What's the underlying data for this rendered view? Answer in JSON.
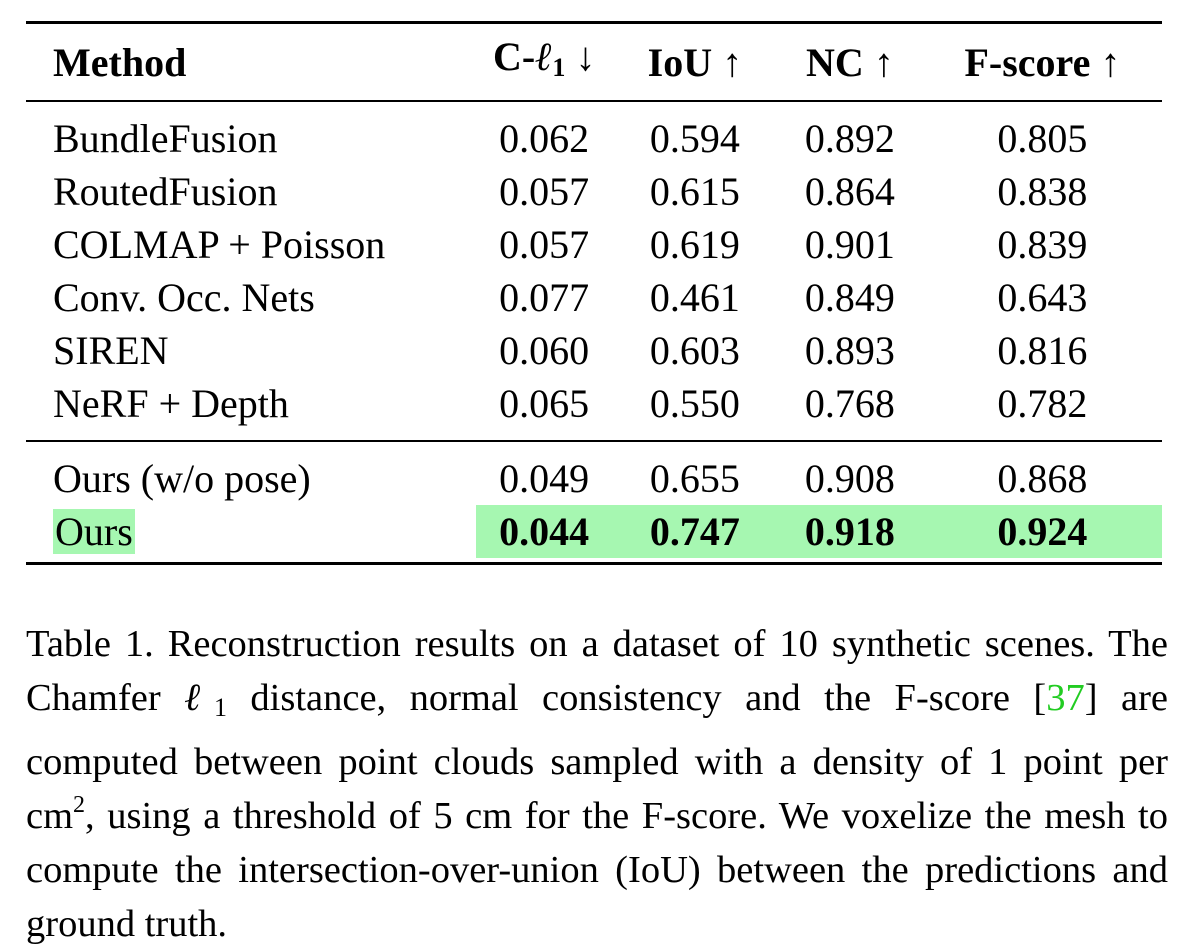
{
  "table": {
    "headers": {
      "method": "Method",
      "chamfer_prefix": "C-",
      "chamfer_symbol": "ℓ",
      "chamfer_sub": "1",
      "chamfer_arrow": "↓",
      "iou": "IoU ↑",
      "nc": "NC ↑",
      "fscore": "F-score ↑"
    },
    "rows": [
      {
        "method": "BundleFusion",
        "c_l1": "0.062",
        "iou": "0.594",
        "nc": "0.892",
        "fscore": "0.805"
      },
      {
        "method": "RoutedFusion",
        "c_l1": "0.057",
        "iou": "0.615",
        "nc": "0.864",
        "fscore": "0.838"
      },
      {
        "method": "COLMAP + Poisson",
        "c_l1": "0.057",
        "iou": "0.619",
        "nc": "0.901",
        "fscore": "0.839"
      },
      {
        "method": "Conv. Occ. Nets",
        "c_l1": "0.077",
        "iou": "0.461",
        "nc": "0.849",
        "fscore": "0.643"
      },
      {
        "method": "SIREN",
        "c_l1": "0.060",
        "iou": "0.603",
        "nc": "0.893",
        "fscore": "0.816"
      },
      {
        "method": "NeRF + Depth",
        "c_l1": "0.065",
        "iou": "0.550",
        "nc": "0.768",
        "fscore": "0.782"
      }
    ],
    "ours_rows": [
      {
        "method": "Ours (w/o pose)",
        "c_l1": "0.049",
        "iou": "0.655",
        "nc": "0.908",
        "fscore": "0.868"
      },
      {
        "method": "Ours",
        "c_l1": "0.044",
        "iou": "0.747",
        "nc": "0.918",
        "fscore": "0.924"
      }
    ],
    "highlight_color": "#a6f7b1"
  },
  "caption": {
    "part1": "Table 1. Reconstruction results on a dataset of 10 synthetic scenes. The Chamfer ",
    "symbol": "ℓ",
    "symbol_sub": "1",
    "part2": " distance, normal consistency and the F-score [",
    "cite": "37",
    "part3": "] are computed between point clouds sampled with a density of 1 point per cm",
    "sup": "2",
    "part4": ", using a threshold of 5 cm for the F-score. We voxelize the mesh to compute the intersection-over-union (IoU) between the predictions and ground truth.",
    "cite_color": "#22cc22"
  }
}
